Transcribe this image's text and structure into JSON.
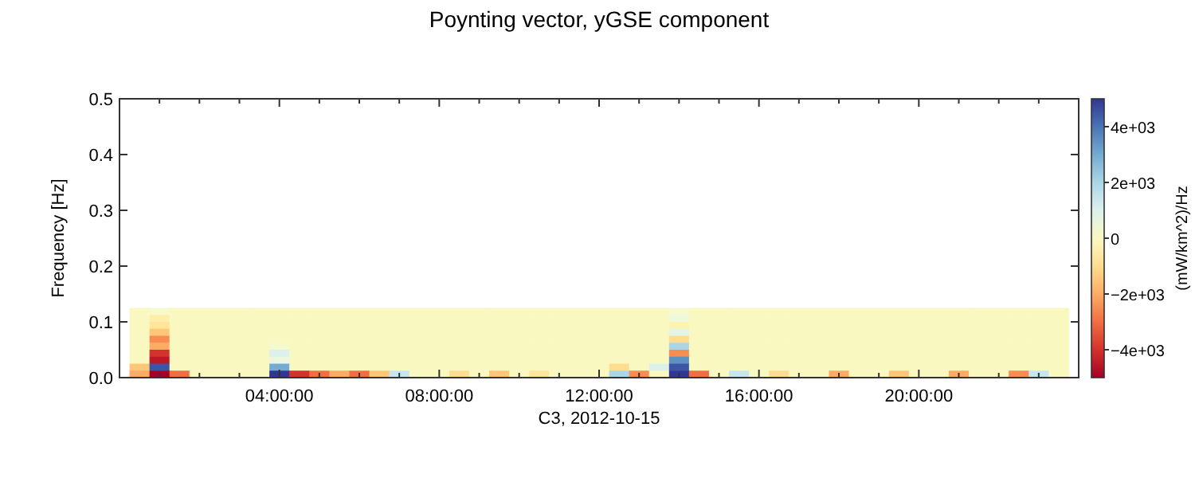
{
  "chart_data": {
    "type": "heatmap",
    "title": "Poynting vector, yGSE component",
    "xlabel": "C3, 2012-10-15",
    "ylabel": "Frequency [Hz]",
    "clabel": "(mW/km^2)/Hz",
    "x": [
      0.5,
      1,
      1.5,
      2,
      2.5,
      3,
      3.5,
      4,
      4.5,
      5,
      5.5,
      6,
      6.5,
      7,
      7.5,
      8,
      8.5,
      9,
      9.5,
      10,
      10.5,
      11,
      11.5,
      12,
      12.5,
      13,
      13.5,
      14,
      14.5,
      15,
      15.5,
      16,
      16.5,
      17,
      17.5,
      18,
      18.5,
      19,
      19.5,
      20,
      20.5,
      21,
      21.5,
      22,
      22.5,
      23,
      23.5
    ],
    "y": [
      0.11875,
      0.10625,
      0.09375,
      0.08125,
      0.06875,
      0.05625,
      0.04375,
      0.03125,
      0.01875,
      0.00625
    ],
    "cells": [
      [
        0,
        200,
        0,
        0,
        0,
        0,
        0,
        0,
        0,
        0,
        0,
        0,
        0,
        0,
        0,
        0,
        0,
        0,
        0,
        0,
        0,
        0,
        0,
        0,
        0,
        0,
        0,
        300,
        0,
        0,
        0,
        0,
        0,
        0,
        0,
        0,
        0,
        0,
        0,
        0,
        0,
        0,
        0,
        0,
        0,
        0,
        0
      ],
      [
        0,
        -500,
        0,
        0,
        0,
        0,
        0,
        0,
        0,
        0,
        0,
        0,
        0,
        0,
        0,
        0,
        0,
        0,
        0,
        0,
        0,
        0,
        0,
        0,
        0,
        0,
        0,
        500,
        0,
        0,
        0,
        0,
        0,
        0,
        0,
        0,
        0,
        0,
        0,
        0,
        0,
        0,
        0,
        0,
        0,
        0,
        0
      ],
      [
        0,
        -800,
        0,
        0,
        0,
        0,
        0,
        0,
        0,
        0,
        0,
        0,
        0,
        0,
        0,
        0,
        0,
        0,
        0,
        0,
        0,
        0,
        0,
        0,
        0,
        0,
        0,
        -300,
        0,
        0,
        0,
        0,
        0,
        0,
        0,
        0,
        0,
        0,
        0,
        0,
        0,
        0,
        0,
        0,
        0,
        0,
        0
      ],
      [
        0,
        -1500,
        0,
        0,
        0,
        0,
        0,
        0,
        0,
        0,
        0,
        0,
        0,
        0,
        0,
        0,
        0,
        0,
        0,
        0,
        0,
        0,
        0,
        0,
        0,
        0,
        0,
        800,
        0,
        0,
        0,
        0,
        0,
        0,
        0,
        0,
        0,
        0,
        0,
        0,
        0,
        0,
        0,
        0,
        0,
        0,
        0
      ],
      [
        0,
        -2500,
        0,
        0,
        0,
        0,
        0,
        0,
        0,
        0,
        0,
        0,
        0,
        0,
        0,
        0,
        0,
        0,
        0,
        0,
        0,
        0,
        0,
        0,
        0,
        0,
        0,
        -1000,
        0,
        0,
        0,
        0,
        0,
        0,
        0,
        0,
        0,
        0,
        0,
        0,
        0,
        0,
        0,
        0,
        0,
        0,
        0
      ],
      [
        0,
        -2000,
        0,
        0,
        0,
        0,
        0,
        300,
        0,
        0,
        0,
        0,
        0,
        0,
        0,
        0,
        0,
        0,
        0,
        0,
        0,
        0,
        0,
        0,
        0,
        0,
        0,
        2000,
        0,
        0,
        0,
        0,
        0,
        0,
        0,
        0,
        0,
        0,
        0,
        0,
        0,
        0,
        0,
        0,
        0,
        0,
        0
      ],
      [
        0,
        -4000,
        0,
        0,
        0,
        0,
        0,
        1000,
        0,
        0,
        0,
        0,
        0,
        0,
        0,
        0,
        0,
        0,
        0,
        0,
        0,
        0,
        0,
        0,
        0,
        0,
        0,
        -2500,
        0,
        0,
        0,
        0,
        0,
        0,
        0,
        0,
        0,
        0,
        0,
        0,
        0,
        0,
        0,
        0,
        0,
        0,
        0
      ],
      [
        0,
        -4500,
        0,
        0,
        0,
        0,
        0,
        600,
        0,
        0,
        0,
        0,
        0,
        0,
        0,
        0,
        0,
        0,
        0,
        0,
        0,
        0,
        0,
        0,
        0,
        0,
        0,
        3500,
        0,
        0,
        0,
        0,
        0,
        0,
        0,
        0,
        0,
        0,
        0,
        0,
        0,
        0,
        0,
        0,
        0,
        0,
        0
      ],
      [
        -1500,
        4500,
        0,
        0,
        0,
        0,
        0,
        3000,
        0,
        0,
        0,
        0,
        0,
        0,
        0,
        0,
        0,
        0,
        0,
        0,
        0,
        0,
        0,
        0,
        -1000,
        0,
        1000,
        4500,
        0,
        0,
        0,
        0,
        0,
        0,
        0,
        0,
        0,
        0,
        0,
        0,
        0,
        0,
        0,
        0,
        0,
        0,
        0
      ],
      [
        -2000,
        -5000,
        -3000,
        0,
        0,
        0,
        0,
        5000,
        -4000,
        -3000,
        -2000,
        -3000,
        -1500,
        1500,
        0,
        0,
        -1000,
        0,
        -1500,
        0,
        -800,
        0,
        0,
        0,
        2000,
        -2500,
        0,
        5000,
        -3000,
        0,
        1500,
        0,
        -1000,
        0,
        0,
        -2000,
        0,
        0,
        -1500,
        0,
        0,
        -2000,
        0,
        0,
        -2500,
        1500,
        0
      ]
    ],
    "xlim": [
      0,
      24
    ],
    "xticks": [
      {
        "value": 1,
        "label": null
      },
      {
        "value": 2,
        "label": null
      },
      {
        "value": 3,
        "label": null
      },
      {
        "value": 4,
        "label": "04:00:00"
      },
      {
        "value": 5,
        "label": null
      },
      {
        "value": 6,
        "label": null
      },
      {
        "value": 7,
        "label": null
      },
      {
        "value": 8,
        "label": "08:00:00"
      },
      {
        "value": 9,
        "label": null
      },
      {
        "value": 10,
        "label": null
      },
      {
        "value": 11,
        "label": null
      },
      {
        "value": 12,
        "label": "12:00:00"
      },
      {
        "value": 13,
        "label": null
      },
      {
        "value": 14,
        "label": null
      },
      {
        "value": 15,
        "label": null
      },
      {
        "value": 16,
        "label": "16:00:00"
      },
      {
        "value": 17,
        "label": null
      },
      {
        "value": 18,
        "label": null
      },
      {
        "value": 19,
        "label": null
      },
      {
        "value": 20,
        "label": "20:00:00"
      },
      {
        "value": 21,
        "label": null
      },
      {
        "value": 22,
        "label": null
      },
      {
        "value": 23,
        "label": null
      }
    ],
    "ylim": [
      0,
      0.5
    ],
    "yticks": [
      {
        "value": 0,
        "label": "0.0"
      },
      0.1,
      0.2,
      0.3,
      0.4,
      0.5
    ],
    "clim": [
      -5000,
      5000
    ],
    "cticks": [
      {
        "value": -4000,
        "label": "−4e+03"
      },
      {
        "value": -2000,
        "label": "−2e+03"
      },
      0,
      {
        "value": 2000,
        "label": "2e+03"
      },
      {
        "value": 4000,
        "label": "4e+03"
      }
    ]
  }
}
